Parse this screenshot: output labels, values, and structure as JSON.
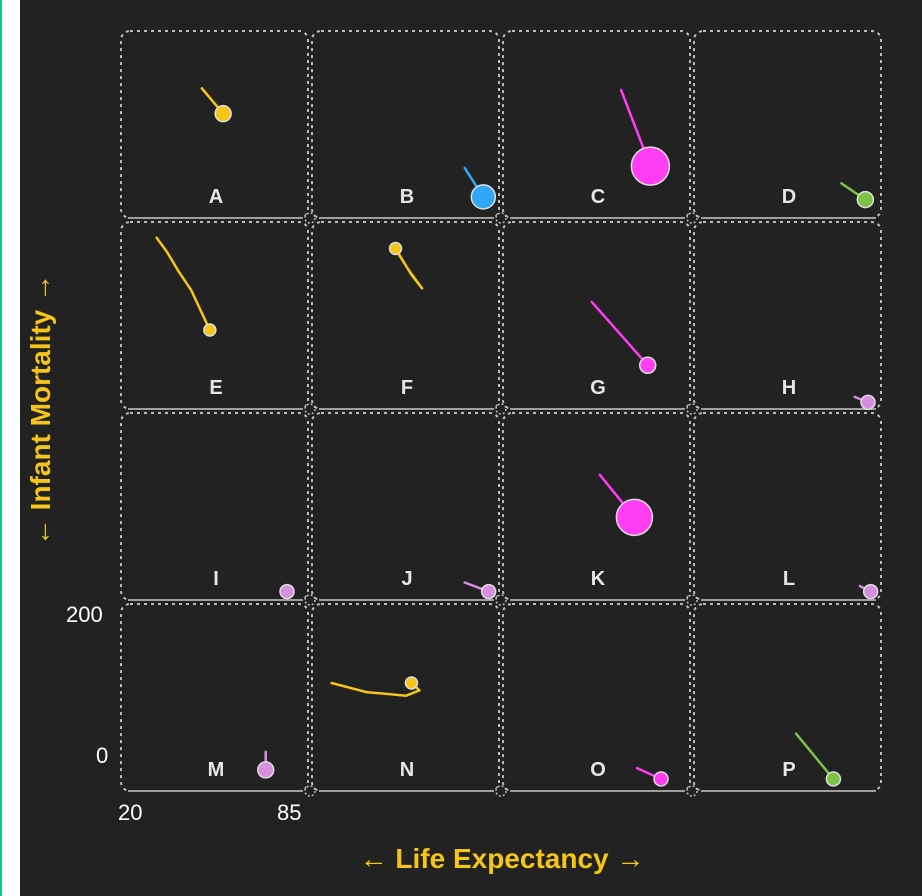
{
  "chart_data": {
    "type": "scatter",
    "xlabel": "← Life Expectancy →",
    "ylabel": "← Infant Mortality →",
    "xlim": [
      20,
      85
    ],
    "ylim": [
      0,
      200
    ],
    "x_ticks": [
      "20",
      "85"
    ],
    "y_ticks": [
      "200",
      "0"
    ],
    "grid": "4x4 small multiples",
    "panels": [
      {
        "label": "A",
        "color": "#f5c518",
        "size": 8,
        "trail": [
          [
            50,
            140
          ],
          [
            58,
            112
          ]
        ]
      },
      {
        "label": "B",
        "color": "#2ea8f5",
        "size": 12,
        "trail": [
          [
            77,
            52
          ],
          [
            84,
            20
          ]
        ]
      },
      {
        "label": "C",
        "color": "#ff3df2",
        "size": 19,
        "trail": [
          [
            64,
            138
          ],
          [
            75,
            54
          ]
        ]
      },
      {
        "label": "D",
        "color": "#7cc244",
        "size": 8,
        "trail": [
          [
            75,
            35
          ],
          [
            84,
            17
          ]
        ]
      },
      {
        "label": "E",
        "color": "#f5c518",
        "size": 6,
        "trail": [
          [
            33,
            186
          ],
          [
            37,
            170
          ],
          [
            41,
            150
          ],
          [
            46,
            128
          ],
          [
            53,
            84
          ]
        ]
      },
      {
        "label": "F",
        "color": "#f5c518",
        "size": 6,
        "trail": [
          [
            50,
            178
          ],
          [
            56,
            150
          ],
          [
            61,
            130
          ],
          [
            57,
            145
          ],
          [
            51,
            174
          ]
        ]
      },
      {
        "label": "G",
        "color": "#ff3df2",
        "size": 8,
        "trail": [
          [
            53,
            115
          ],
          [
            74,
            45
          ]
        ]
      },
      {
        "label": "H",
        "color": "#d68fdf",
        "size": 7,
        "trail": [
          [
            80,
            10
          ],
          [
            85,
            4
          ]
        ]
      },
      {
        "label": "I",
        "color": "#d68fdf",
        "size": 7,
        "trail": [
          [
            80,
            8
          ],
          [
            82,
            6
          ]
        ]
      },
      {
        "label": "J",
        "color": "#d68fdf",
        "size": 7,
        "trail": [
          [
            77,
            16
          ],
          [
            86,
            6
          ]
        ]
      },
      {
        "label": "K",
        "color": "#ff3df2",
        "size": 18,
        "trail": [
          [
            56,
            135
          ],
          [
            69,
            88
          ]
        ]
      },
      {
        "label": "L",
        "color": "#d68fdf",
        "size": 7,
        "trail": [
          [
            82,
            12
          ],
          [
            86,
            6
          ]
        ]
      },
      {
        "label": "M",
        "color": "#d68fdf",
        "size": 8,
        "trail": [
          [
            74,
            40
          ],
          [
            74,
            20
          ]
        ]
      },
      {
        "label": "N",
        "color": "#f5c518",
        "size": 6,
        "trail": [
          [
            27,
            116
          ],
          [
            40,
            106
          ],
          [
            55,
            102
          ],
          [
            60,
            108
          ],
          [
            57,
            116
          ]
        ]
      },
      {
        "label": "O",
        "color": "#ff3df2",
        "size": 7,
        "trail": [
          [
            70,
            22
          ],
          [
            79,
            10
          ]
        ]
      },
      {
        "label": "P",
        "color": "#7cc244",
        "size": 7,
        "trail": [
          [
            58,
            60
          ],
          [
            72,
            10
          ]
        ]
      }
    ]
  }
}
